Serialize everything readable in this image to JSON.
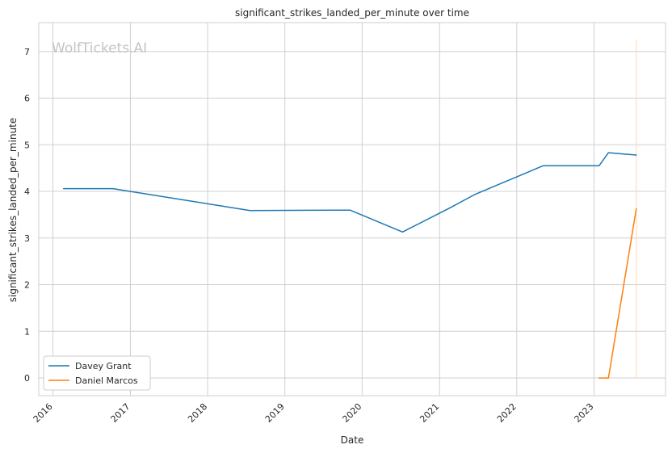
{
  "chart_data": {
    "type": "line",
    "title": "significant_strikes_landed_per_minute over time",
    "xlabel": "Date",
    "ylabel": "significant_strikes_landed_per_minute",
    "watermark": "WolfTickets.AI",
    "x_ticks": [
      "2016",
      "2017",
      "2018",
      "2019",
      "2020",
      "2021",
      "2022",
      "2023"
    ],
    "y_ticks": [
      0,
      1,
      2,
      3,
      4,
      5,
      6,
      7
    ],
    "xlim": [
      "2015-10-26",
      "2023-12-05"
    ],
    "ylim": [
      -0.38,
      7.62
    ],
    "grid": true,
    "legend_position": "lower-left",
    "series": [
      {
        "name": "Davey Grant",
        "color": "#1f77b4",
        "points": [
          [
            "2016-02-20",
            4.06
          ],
          [
            "2016-10-10",
            4.06
          ],
          [
            "2018-07-20",
            3.59
          ],
          [
            "2019-11-05",
            3.6
          ],
          [
            "2020-07-10",
            3.13
          ],
          [
            "2021-02-20",
            3.65
          ],
          [
            "2021-06-15",
            3.93
          ],
          [
            "2022-05-05",
            4.55
          ],
          [
            "2023-01-25",
            4.55
          ],
          [
            "2023-03-10",
            4.83
          ],
          [
            "2023-07-20",
            4.78
          ]
        ]
      },
      {
        "name": "Daniel Marcos",
        "color": "#ff7f0e",
        "points": [
          [
            "2023-01-25",
            0.0
          ],
          [
            "2023-03-10",
            0.0
          ],
          [
            "2023-07-20",
            3.63
          ]
        ]
      }
    ],
    "vertical_marker": {
      "date": "2023-07-20",
      "y_range": [
        0,
        7.25
      ],
      "color": "#ffd9b0"
    }
  }
}
